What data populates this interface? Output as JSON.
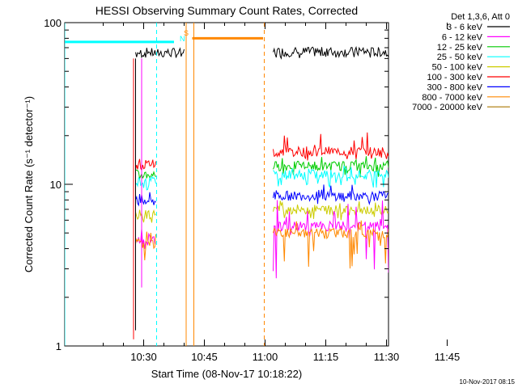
{
  "chart_data": {
    "type": "line",
    "title": "HESSI Observing Summary Count Rates, Corrected",
    "xlabel": "Start Time (08-Nov-17 10:18:22)",
    "ylabel": "Corrected Count Rate (s⁻¹ detector⁻¹)",
    "yscale": "log",
    "ylim": [
      1,
      100
    ],
    "xlim_minutes": [
      10.5,
      89
    ],
    "x_ticks": [
      {
        "label": "10:30",
        "minutes": 30
      },
      {
        "label": "10:45",
        "minutes": 45
      },
      {
        "label": "11:00",
        "minutes": 60
      },
      {
        "label": "11:15",
        "minutes": 75
      },
      {
        "label": "11:30",
        "minutes": 90
      },
      {
        "label": "11:45",
        "minutes": 105
      }
    ],
    "y_ticks": [
      {
        "label": "1",
        "value": 1
      },
      {
        "label": "10",
        "value": 10
      },
      {
        "label": "100",
        "value": 100
      }
    ],
    "legend": {
      "placement": "right",
      "title": "Det 1,3,6, Att 0",
      "entries": [
        {
          "label": "3 - 6 keV",
          "color": "#000000"
        },
        {
          "label": "6 - 12 keV",
          "color": "#ff00ff"
        },
        {
          "label": "12 - 25 keV",
          "color": "#00cc00"
        },
        {
          "label": "25 - 50 keV",
          "color": "#00ffff"
        },
        {
          "label": "50 - 100 keV",
          "color": "#cccc00"
        },
        {
          "label": "100 - 300 keV",
          "color": "#ff0000"
        },
        {
          "label": "300 - 800 keV",
          "color": "#0000ff"
        },
        {
          "label": "800 - 7000 keV",
          "color": "#ff8800"
        },
        {
          "label": "7000 - 20000 keV",
          "color": "#aa7700"
        }
      ]
    },
    "series": [
      {
        "name": "3 - 6 keV",
        "color": "#000000",
        "segments": [
          {
            "x0": 28,
            "x1": 40,
            "level": 65,
            "lo": 60,
            "hi": 70
          },
          {
            "x0": 62,
            "x1": 94,
            "level": 66,
            "lo": 60,
            "hi": 72
          }
        ]
      },
      {
        "name": "100 - 300 keV",
        "color": "#ff0000",
        "segments": [
          {
            "x0": 28,
            "x1": 33,
            "level": 13.5,
            "lo": 12,
            "hi": 15
          },
          {
            "x0": 62,
            "x1": 94,
            "level": 16,
            "lo": 14,
            "hi": 21
          }
        ]
      },
      {
        "name": "12 - 25 keV",
        "color": "#00cc00",
        "segments": [
          {
            "x0": 28,
            "x1": 33,
            "level": 11.5,
            "lo": 10.5,
            "hi": 12.5
          },
          {
            "x0": 62,
            "x1": 94,
            "level": 13,
            "lo": 11,
            "hi": 15
          }
        ]
      },
      {
        "name": "25 - 50 keV",
        "color": "#00ffff",
        "segments": [
          {
            "x0": 28,
            "x1": 33,
            "level": 10.5,
            "lo": 9,
            "hi": 11.5
          },
          {
            "x0": 62,
            "x1": 94,
            "level": 11.5,
            "lo": 9.5,
            "hi": 13
          }
        ]
      },
      {
        "name": "300 - 800 keV",
        "color": "#0000ff",
        "segments": [
          {
            "x0": 28,
            "x1": 33,
            "level": 8,
            "lo": 7,
            "hi": 9
          },
          {
            "x0": 62,
            "x1": 94,
            "level": 8.5,
            "lo": 7.5,
            "hi": 10
          }
        ]
      },
      {
        "name": "50 - 100 keV",
        "color": "#cccc00",
        "segments": [
          {
            "x0": 28,
            "x1": 33,
            "level": 6.5,
            "lo": 5.5,
            "hi": 7.5
          },
          {
            "x0": 62,
            "x1": 94,
            "level": 7,
            "lo": 6,
            "hi": 8
          }
        ]
      },
      {
        "name": "6 - 12 keV",
        "color": "#ff00ff",
        "segments": [
          {
            "x0": 28,
            "x1": 33,
            "level": 4.5,
            "lo": 2.5,
            "hi": 5.5
          },
          {
            "x0": 62,
            "x1": 94,
            "level": 5.5,
            "lo": 2.5,
            "hi": 8
          }
        ]
      },
      {
        "name": "800 - 7000 keV",
        "color": "#ff8800",
        "segments": [
          {
            "x0": 28,
            "x1": 33,
            "level": 4.3,
            "lo": 3,
            "hi": 5.5
          },
          {
            "x0": 62,
            "x1": 94,
            "level": 5,
            "lo": 3,
            "hi": 6
          }
        ]
      }
    ],
    "annotations": [
      {
        "label": "S",
        "color": "#ff8800",
        "at_minutes": 40.5
      },
      {
        "label": "N",
        "color": "#00ffff",
        "at_minutes": 39.5
      }
    ],
    "state_bars": [
      {
        "name": "night",
        "color": "#00ffff",
        "x0": 10.5,
        "x1": 37.5,
        "value": 76
      },
      {
        "name": "saa",
        "color": "#ff8800",
        "x0": 42,
        "x1": 59.5,
        "value": 80
      },
      {
        "name": "night",
        "color": "#00ffff",
        "x0": 94,
        "x1": 108.5,
        "value": 76
      }
    ],
    "vlines": [
      {
        "minutes": 10.5,
        "color": "#00ffff",
        "style": "solid"
      },
      {
        "minutes": 33.2,
        "color": "#00ffff",
        "style": "dashed"
      },
      {
        "minutes": 40.5,
        "color": "#ff8800",
        "style": "solid"
      },
      {
        "minutes": 42.4,
        "color": "#ff8800",
        "style": "solid"
      },
      {
        "minutes": 59.8,
        "color": "#ff8800",
        "style": "dashed"
      },
      {
        "minutes": 94.2,
        "color": "#00ffff",
        "style": "solid"
      },
      {
        "minutes": 108.8,
        "color": "#00ffff",
        "style": "dashed"
      }
    ],
    "grid": false
  },
  "footer": {
    "timestamp": "10-Nov-2017 08:15"
  }
}
